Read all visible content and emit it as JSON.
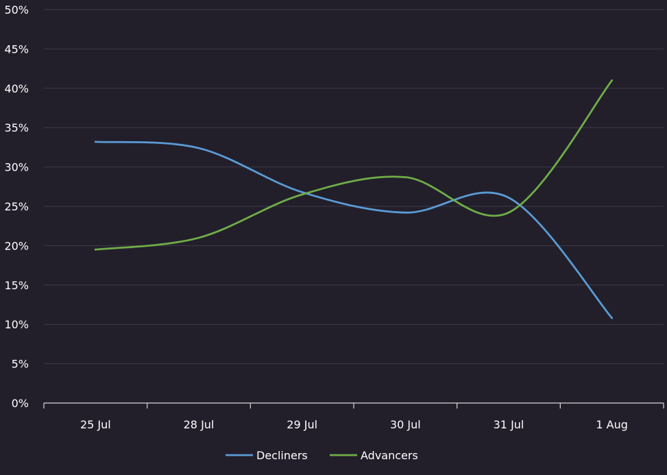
{
  "chart_data": {
    "type": "line",
    "title": "",
    "xlabel": "",
    "ylabel": "",
    "categories": [
      "25 Jul",
      "28 Jul",
      "29 Jul",
      "30 Jul",
      "31 Jul",
      "1 Aug"
    ],
    "series": [
      {
        "name": "Decliners",
        "color": "#5b9bd5",
        "values": [
          33.2,
          32.4,
          26.8,
          24.2,
          26.1,
          10.8
        ]
      },
      {
        "name": "Advancers",
        "color": "#70ad47",
        "values": [
          19.5,
          21.0,
          26.5,
          28.7,
          24.2,
          41.0
        ]
      }
    ],
    "ylim": [
      0,
      50
    ],
    "yticks": [
      0,
      5,
      10,
      15,
      20,
      25,
      30,
      35,
      40,
      45,
      50
    ],
    "ytick_labels": [
      "0%",
      "5%",
      "10%",
      "15%",
      "20%",
      "25%",
      "30%",
      "35%",
      "40%",
      "45%",
      "50%"
    ],
    "grid": true,
    "legend_position": "bottom",
    "smooth": true,
    "colors": {
      "background": "#221f2b",
      "grid": "#3f3b48",
      "axis": "#d9d9d9",
      "text": "#ffffff"
    }
  }
}
